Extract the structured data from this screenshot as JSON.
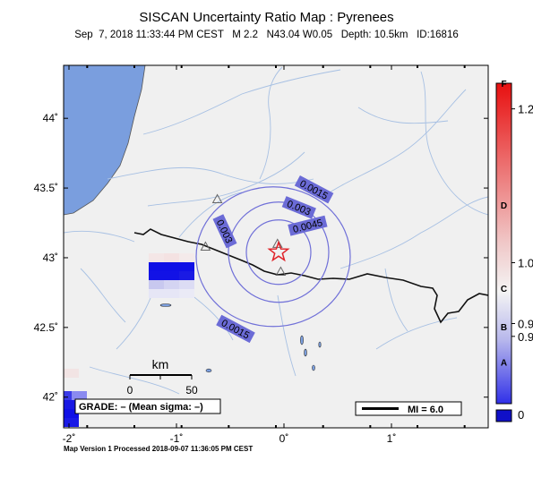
{
  "title": "SISCAN Uncertainty Ratio Map : Pyrenees",
  "subtitle": "Sep  7, 2018 11:33:44 PM CEST   M 2.2   N43.04 W0.05   Depth: 10.5km   ID:16816",
  "footer": "Map Version 1 Processed 2018-09-07 11:36:05 PM CEST",
  "map": {
    "lon_range": [
      -2.05,
      1.9
    ],
    "lat_range": [
      41.78,
      44.38
    ],
    "lon_ticks": [
      {
        "value": -2,
        "label": "-2˚"
      },
      {
        "value": -1,
        "label": "-1˚"
      },
      {
        "value": 0,
        "label": "0˚"
      },
      {
        "value": 1,
        "label": "1˚"
      }
    ],
    "lat_ticks": [
      {
        "value": 44,
        "label": "44˚"
      },
      {
        "value": 43.5,
        "label": "43.5˚"
      },
      {
        "value": 43,
        "label": "43˚"
      },
      {
        "value": 42.5,
        "label": "42.5˚"
      },
      {
        "value": 42,
        "label": "42˚"
      }
    ],
    "epicenter": {
      "lon": -0.05,
      "lat": 43.04
    },
    "stations": [
      {
        "lon": -0.62,
        "lat": 43.42
      },
      {
        "lon": -0.73,
        "lat": 43.08
      },
      {
        "lon": -0.06,
        "lat": 43.1
      },
      {
        "lon": -0.03,
        "lat": 42.9
      }
    ],
    "contours": [
      {
        "label": "0.0015",
        "r": 78
      },
      {
        "label": "0.003",
        "r": 56
      },
      {
        "label": "0.0045",
        "r": 36
      }
    ],
    "contour_labels": [
      {
        "text": "0.0015",
        "lon": 0.28,
        "lat": 43.49,
        "angle": 28
      },
      {
        "text": "0.003",
        "lon": 0.14,
        "lat": 43.36,
        "angle": 22
      },
      {
        "text": "0.0045",
        "lon": 0.22,
        "lat": 43.23,
        "angle": -14
      },
      {
        "text": "0.003",
        "lon": -0.55,
        "lat": 43.19,
        "angle": 65
      },
      {
        "text": "0.0015",
        "lon": -0.45,
        "lat": 42.49,
        "angle": 28
      }
    ],
    "grade": "GRADE: – (Mean sigma: –)",
    "scale": {
      "unit": "km",
      "start": "0",
      "end": "50"
    },
    "mi_label": "MI = 6.0",
    "colors": {
      "ocean": "#7a9ede",
      "land": "#f0f0f0",
      "river": "#a7c0e3",
      "contour": "#7070d8",
      "label_bg": "#6b6bd6",
      "epicenter": "#e0242a",
      "cell_blue": "#1010e6"
    }
  },
  "colorbar": {
    "grade_labels": [
      {
        "text": "F",
        "value": 1.0
      },
      {
        "text": "D",
        "value": 0.62
      },
      {
        "text": "C",
        "value": 0.36
      },
      {
        "text": "B",
        "value": 0.24
      },
      {
        "text": "A",
        "value": 0.13
      }
    ],
    "value_labels": [
      {
        "text": "1.2",
        "value": 0.92
      },
      {
        "text": "1.0",
        "value": 0.44
      },
      {
        "text": "0.9",
        "value": 0.25
      },
      {
        "text": "0.9",
        "value": 0.21
      },
      {
        "text": "0",
        "value": 0.0
      }
    ]
  }
}
